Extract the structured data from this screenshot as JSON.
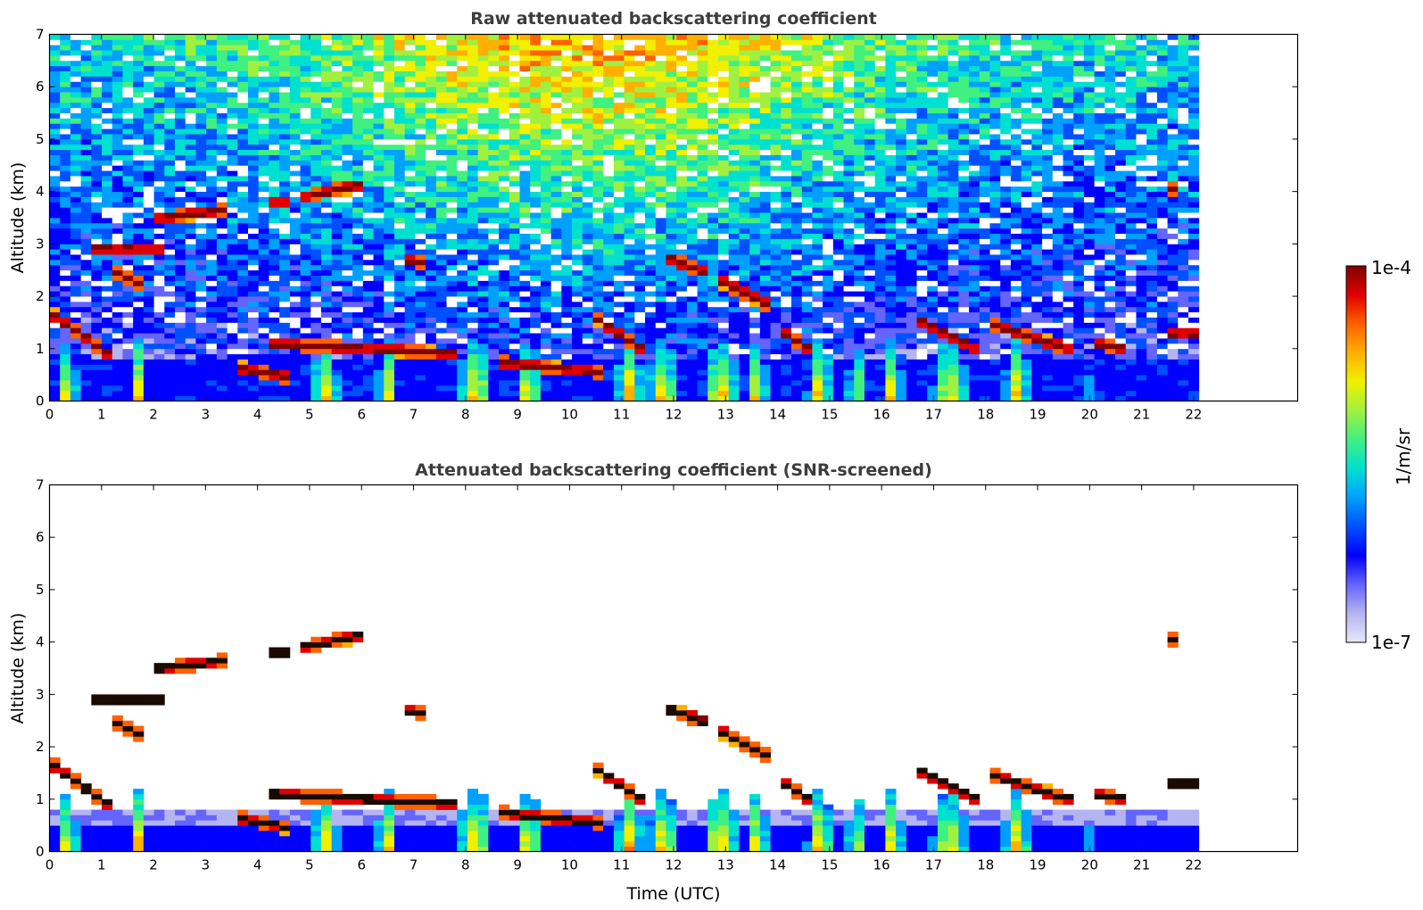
{
  "chart_data": [
    {
      "type": "heatmap",
      "title": "Raw attenuated backscattering coefficient",
      "xlabel": "",
      "ylabel": "Altitude (km)",
      "xlim": [
        0,
        24
      ],
      "ylim": [
        0,
        7
      ],
      "data_xmax": 22.1,
      "xticks": [
        0,
        1,
        2,
        3,
        4,
        5,
        6,
        7,
        8,
        9,
        10,
        11,
        12,
        13,
        14,
        15,
        16,
        17,
        18,
        19,
        20,
        21,
        22
      ],
      "yticks": [
        0,
        1,
        2,
        3,
        4,
        5,
        6,
        7
      ],
      "screened": false
    },
    {
      "type": "heatmap",
      "title": "Attenuated backscattering coefficient (SNR-screened)",
      "xlabel": "Time (UTC)",
      "ylabel": "Altitude (km)",
      "xlim": [
        0,
        24
      ],
      "ylim": [
        0,
        7
      ],
      "data_xmax": 22.1,
      "xticks": [
        0,
        1,
        2,
        3,
        4,
        5,
        6,
        7,
        8,
        9,
        10,
        11,
        12,
        13,
        14,
        15,
        16,
        17,
        18,
        19,
        20,
        21,
        22
      ],
      "yticks": [
        0,
        1,
        2,
        3,
        4,
        5,
        6,
        7
      ],
      "screened": true
    }
  ],
  "colorbar": {
    "label": "1/m/sr",
    "max_label": "1e-4",
    "min_label": "1e-7",
    "scale": "log",
    "range": [
      1e-07,
      0.0001
    ],
    "colormap": [
      "#e8e8fa",
      "#b4b4f0",
      "#6464ff",
      "#0000ff",
      "#0050ff",
      "#00a0ff",
      "#00e0d0",
      "#40f080",
      "#a0f040",
      "#f0f000",
      "#ffb000",
      "#ff6000",
      "#e00000",
      "#800000"
    ]
  },
  "features": {
    "cloud_layers": [
      {
        "t": [
          0.0,
          1.2
        ],
        "alt": [
          1.7,
          0.85
        ]
      },
      {
        "t": [
          0.9,
          2.3
        ],
        "alt": [
          2.9,
          2.9
        ]
      },
      {
        "t": [
          1.2,
          1.8
        ],
        "alt": [
          2.5,
          2.2
        ]
      },
      {
        "t": [
          2.1,
          3.4
        ],
        "alt": [
          3.5,
          3.65
        ]
      },
      {
        "t": [
          3.6,
          4.6
        ],
        "alt": [
          0.65,
          0.45
        ]
      },
      {
        "t": [
          4.2,
          4.6
        ],
        "alt": [
          3.8,
          3.8
        ]
      },
      {
        "t": [
          4.9,
          6.1
        ],
        "alt": [
          3.9,
          4.15
        ]
      },
      {
        "t": [
          4.3,
          7.9
        ],
        "alt": [
          1.1,
          0.9
        ]
      },
      {
        "t": [
          6.9,
          7.3
        ],
        "alt": [
          2.7,
          2.6
        ]
      },
      {
        "t": [
          8.6,
          10.6
        ],
        "alt": [
          0.75,
          0.55
        ]
      },
      {
        "t": [
          10.5,
          11.5
        ],
        "alt": [
          1.6,
          0.9
        ]
      },
      {
        "t": [
          11.8,
          12.7
        ],
        "alt": [
          2.75,
          2.45
        ]
      },
      {
        "t": [
          12.9,
          13.9
        ],
        "alt": [
          2.3,
          1.8
        ]
      },
      {
        "t": [
          14.0,
          14.6
        ],
        "alt": [
          1.4,
          1.0
        ]
      },
      {
        "t": [
          16.6,
          17.8
        ],
        "alt": [
          1.6,
          1.0
        ]
      },
      {
        "t": [
          18.0,
          19.6
        ],
        "alt": [
          1.5,
          1.0
        ]
      },
      {
        "t": [
          20.1,
          20.7
        ],
        "alt": [
          1.1,
          1.0
        ]
      },
      {
        "t": [
          21.5,
          22.0
        ],
        "alt": [
          1.3,
          1.3
        ]
      },
      {
        "t": [
          21.5,
          21.65
        ],
        "alt": [
          4.05,
          4.05
        ]
      }
    ],
    "precip_shafts": [
      {
        "t": 0.35,
        "w": 0.35
      },
      {
        "t": 1.7,
        "w": 0.3
      },
      {
        "t": 5.3,
        "w": 0.5
      },
      {
        "t": 6.5,
        "w": 0.4
      },
      {
        "t": 8.2,
        "w": 0.7
      },
      {
        "t": 9.2,
        "w": 0.5
      },
      {
        "t": 11.15,
        "w": 0.5
      },
      {
        "t": 11.8,
        "w": 0.6
      },
      {
        "t": 12.9,
        "w": 0.7
      },
      {
        "t": 13.6,
        "w": 0.4
      },
      {
        "t": 14.8,
        "w": 0.5
      },
      {
        "t": 15.5,
        "w": 0.3
      },
      {
        "t": 16.2,
        "w": 0.4
      },
      {
        "t": 17.3,
        "w": 0.7
      },
      {
        "t": 18.6,
        "w": 0.5
      },
      {
        "t": 19.9,
        "w": 0.2
      }
    ]
  }
}
